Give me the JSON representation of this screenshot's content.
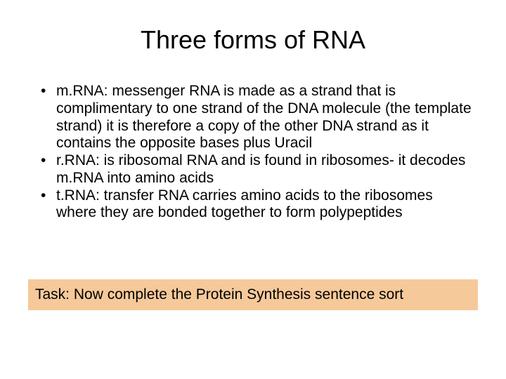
{
  "slide": {
    "title": "Three forms of RNA",
    "bullets": [
      "m.RNA: messenger RNA is made as a strand that is complimentary to one strand of the DNA molecule (the template strand) it is therefore a copy of the other DNA strand as it contains the opposite bases plus Uracil",
      "r.RNA: is ribosomal RNA and is found in ribosomes- it decodes m.RNA into amino acids",
      "t.RNA: transfer RNA carries amino acids to the ribosomes where they are bonded together to form polypeptides"
    ],
    "task_text": "Task: Now complete the Protein Synthesis sentence sort"
  },
  "style": {
    "background_color": "#ffffff",
    "text_color": "#000000",
    "title_fontsize": 36,
    "body_fontsize": 21,
    "task_box_color": "#f6c99a",
    "font_family": "Arial"
  }
}
